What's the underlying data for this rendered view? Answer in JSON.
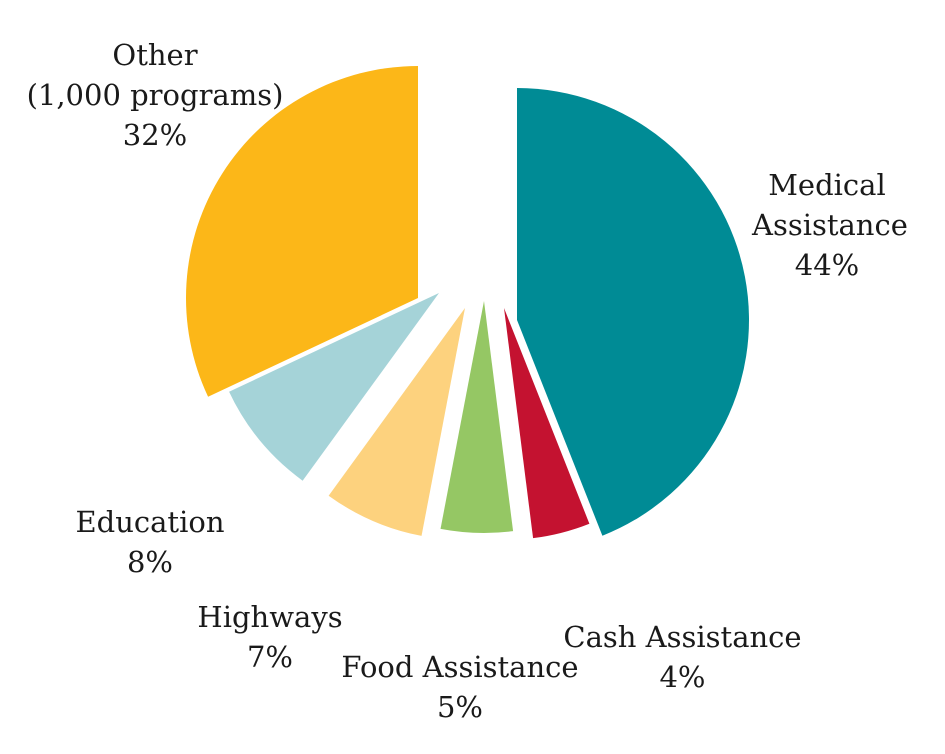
{
  "chart_data": {
    "type": "pie",
    "slices": [
      {
        "label_lines": [
          "Medical",
          "Assistance"
        ],
        "percent_label": "44%",
        "value": 44,
        "color": "#008B95"
      },
      {
        "label_lines": [
          "Cash Assistance"
        ],
        "percent_label": "4%",
        "value": 4,
        "color": "#C41230"
      },
      {
        "label_lines": [
          "Food Assistance"
        ],
        "percent_label": "5%",
        "value": 5,
        "color": "#95C764"
      },
      {
        "label_lines": [
          "Highways"
        ],
        "percent_label": "7%",
        "value": 7,
        "color": "#FDD27E"
      },
      {
        "label_lines": [
          "Education"
        ],
        "percent_label": "8%",
        "value": 8,
        "color": "#A5D3D8"
      },
      {
        "label_lines": [
          "Other",
          "(1,000 programs)"
        ],
        "percent_label": "32%",
        "value": 32,
        "color": "#FCB718"
      }
    ]
  }
}
